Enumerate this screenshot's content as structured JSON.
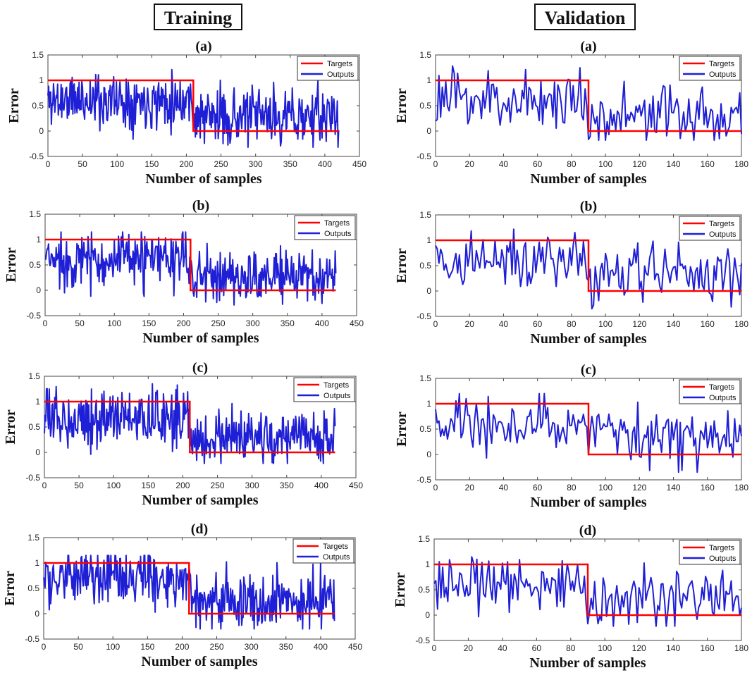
{
  "headers": {
    "training": "Training",
    "validation": "Validation"
  },
  "colors": {
    "targets": "#ff0000",
    "outputs": "#1f1fd6"
  },
  "chart_data": [
    {
      "type": "line",
      "column": "training",
      "title": "(a)",
      "xlabel": "Number of samples",
      "ylabel": "Error",
      "xlim": [
        0,
        450
      ],
      "ylim": [
        -0.5,
        1.5
      ],
      "xticks": [
        "0",
        "50",
        "100",
        "150",
        "200",
        "250",
        "300",
        "350",
        "400",
        "450"
      ],
      "yticks": [
        "-0.5",
        "0",
        "0.5",
        "1",
        "1.5"
      ],
      "n_samples": 420,
      "switch_at": 210,
      "seed": 11,
      "legend": {
        "position": "top-right",
        "entries": [
          "Targets",
          "Outputs"
        ]
      },
      "series": [
        {
          "name": "Targets",
          "points": [
            [
              0,
              1
            ],
            [
              210,
              1
            ],
            [
              210,
              0
            ],
            [
              420,
              0
            ]
          ]
        },
        {
          "name": "Outputs",
          "class_means": [
            0.62,
            0.28
          ],
          "spread": 0.55,
          "range": [
            -0.32,
            1.38
          ]
        }
      ]
    },
    {
      "type": "line",
      "column": "validation",
      "title": "(a)",
      "xlabel": "Number of samples",
      "ylabel": "Error",
      "xlim": [
        0,
        180
      ],
      "ylim": [
        -0.5,
        1.5
      ],
      "xticks": [
        "0",
        "20",
        "40",
        "60",
        "80",
        "100",
        "120",
        "140",
        "160",
        "180"
      ],
      "yticks": [
        "-0.5",
        "0",
        "0.5",
        "1",
        "1.5"
      ],
      "n_samples": 180,
      "switch_at": 90,
      "seed": 23,
      "legend": {
        "position": "top-right",
        "entries": [
          "Targets",
          "Outputs"
        ]
      },
      "series": [
        {
          "name": "Targets",
          "points": [
            [
              0,
              1
            ],
            [
              90,
              1
            ],
            [
              90,
              0
            ],
            [
              180,
              0
            ]
          ]
        },
        {
          "name": "Outputs",
          "class_means": [
            0.62,
            0.3
          ],
          "spread": 0.6,
          "range": [
            -0.18,
            1.45
          ]
        }
      ]
    },
    {
      "type": "line",
      "column": "training",
      "title": "(b)",
      "xlabel": "Number of samples",
      "ylabel": "Error",
      "xlim": [
        0,
        450
      ],
      "ylim": [
        -0.5,
        1.5
      ],
      "xticks": [
        "0",
        "50",
        "100",
        "150",
        "200",
        "250",
        "300",
        "350",
        "400",
        "450"
      ],
      "yticks": [
        "-0.5",
        "0",
        "0.5",
        "1",
        "1.5"
      ],
      "n_samples": 420,
      "switch_at": 210,
      "seed": 37,
      "legend": {
        "position": "top-right",
        "entries": [
          "Targets",
          "Outputs"
        ]
      },
      "series": [
        {
          "name": "Targets",
          "points": [
            [
              0,
              1
            ],
            [
              210,
              1
            ],
            [
              210,
              0
            ],
            [
              420,
              0
            ]
          ]
        },
        {
          "name": "Outputs",
          "class_means": [
            0.6,
            0.27
          ],
          "spread": 0.55,
          "range": [
            -0.42,
            1.15
          ]
        }
      ]
    },
    {
      "type": "line",
      "column": "validation",
      "title": "(b)",
      "xlabel": "Number of samples",
      "ylabel": "Error",
      "xlim": [
        0,
        180
      ],
      "ylim": [
        -0.5,
        1.5
      ],
      "xticks": [
        "0",
        "20",
        "40",
        "60",
        "80",
        "100",
        "120",
        "140",
        "160",
        "180"
      ],
      "yticks": [
        "-0.5",
        "0",
        "0.5",
        "1",
        "1.5"
      ],
      "n_samples": 180,
      "switch_at": 90,
      "seed": 41,
      "legend": {
        "position": "top-right",
        "entries": [
          "Targets",
          "Outputs"
        ]
      },
      "series": [
        {
          "name": "Targets",
          "points": [
            [
              0,
              1
            ],
            [
              90,
              1
            ],
            [
              90,
              0
            ],
            [
              180,
              0
            ]
          ]
        },
        {
          "name": "Outputs",
          "class_means": [
            0.6,
            0.32
          ],
          "spread": 0.6,
          "range": [
            -0.35,
            1.22
          ]
        }
      ]
    },
    {
      "type": "line",
      "column": "training",
      "title": "(c)",
      "xlabel": "Number of samples",
      "ylabel": "Error",
      "xlim": [
        0,
        450
      ],
      "ylim": [
        -0.5,
        1.5
      ],
      "xticks": [
        "0",
        "50",
        "100",
        "150",
        "200",
        "250",
        "300",
        "350",
        "400",
        "450"
      ],
      "yticks": [
        "-0.5",
        "0",
        "0.5",
        "1",
        "1.5"
      ],
      "n_samples": 420,
      "switch_at": 210,
      "seed": 53,
      "legend": {
        "position": "top-right",
        "entries": [
          "Targets",
          "Outputs"
        ]
      },
      "series": [
        {
          "name": "Targets",
          "points": [
            [
              0,
              1
            ],
            [
              210,
              1
            ],
            [
              210,
              0
            ],
            [
              420,
              0
            ]
          ]
        },
        {
          "name": "Outputs",
          "class_means": [
            0.68,
            0.27
          ],
          "spread": 0.55,
          "range": [
            -0.22,
            1.35
          ]
        }
      ]
    },
    {
      "type": "line",
      "column": "validation",
      "title": "(c)",
      "xlabel": "Number of samples",
      "ylabel": "Error",
      "xlim": [
        0,
        180
      ],
      "ylim": [
        -0.5,
        1.5
      ],
      "xticks": [
        "0",
        "20",
        "40",
        "60",
        "80",
        "100",
        "120",
        "140",
        "160",
        "180"
      ],
      "yticks": [
        "-0.5",
        "0",
        "0.5",
        "1",
        "1.5"
      ],
      "n_samples": 180,
      "switch_at": 90,
      "seed": 67,
      "legend": {
        "position": "top-right",
        "entries": [
          "Targets",
          "Outputs"
        ]
      },
      "series": [
        {
          "name": "Targets",
          "points": [
            [
              0,
              1
            ],
            [
              90,
              1
            ],
            [
              90,
              0
            ],
            [
              180,
              0
            ]
          ]
        },
        {
          "name": "Outputs",
          "class_means": [
            0.6,
            0.33
          ],
          "spread": 0.6,
          "range": [
            -0.35,
            1.2
          ]
        }
      ]
    },
    {
      "type": "line",
      "column": "training",
      "title": "(d)",
      "xlabel": "Number of samples",
      "ylabel": "Error",
      "xlim": [
        0,
        450
      ],
      "ylim": [
        -0.5,
        1.5
      ],
      "xticks": [
        "0",
        "50",
        "100",
        "150",
        "200",
        "250",
        "300",
        "350",
        "400",
        "450"
      ],
      "yticks": [
        "-0.5",
        "0",
        "0.5",
        "1",
        "1.5"
      ],
      "n_samples": 420,
      "switch_at": 210,
      "seed": 71,
      "legend": {
        "position": "top-right",
        "entries": [
          "Targets",
          "Outputs"
        ]
      },
      "series": [
        {
          "name": "Targets",
          "points": [
            [
              0,
              1
            ],
            [
              210,
              1
            ],
            [
              210,
              0
            ],
            [
              420,
              0
            ]
          ]
        },
        {
          "name": "Outputs",
          "class_means": [
            0.7,
            0.3
          ],
          "spread": 0.55,
          "range": [
            -0.3,
            1.15
          ]
        }
      ]
    },
    {
      "type": "line",
      "column": "validation",
      "title": "(d)",
      "xlabel": "Number of samples",
      "ylabel": "Error",
      "xlim": [
        0,
        180
      ],
      "ylim": [
        -0.5,
        1.5
      ],
      "xticks": [
        "0",
        "20",
        "40",
        "60",
        "80",
        "100",
        "120",
        "140",
        "160",
        "180"
      ],
      "yticks": [
        "-0.5",
        "0",
        "0.5",
        "1",
        "1.5"
      ],
      "n_samples": 180,
      "switch_at": 90,
      "seed": 83,
      "legend": {
        "position": "top-right",
        "entries": [
          "Targets",
          "Outputs"
        ]
      },
      "series": [
        {
          "name": "Targets",
          "points": [
            [
              0,
              1
            ],
            [
              90,
              1
            ],
            [
              90,
              0
            ],
            [
              180,
              0
            ]
          ]
        },
        {
          "name": "Outputs",
          "class_means": [
            0.6,
            0.27
          ],
          "spread": 0.6,
          "range": [
            -0.22,
            1.15
          ]
        }
      ]
    }
  ]
}
